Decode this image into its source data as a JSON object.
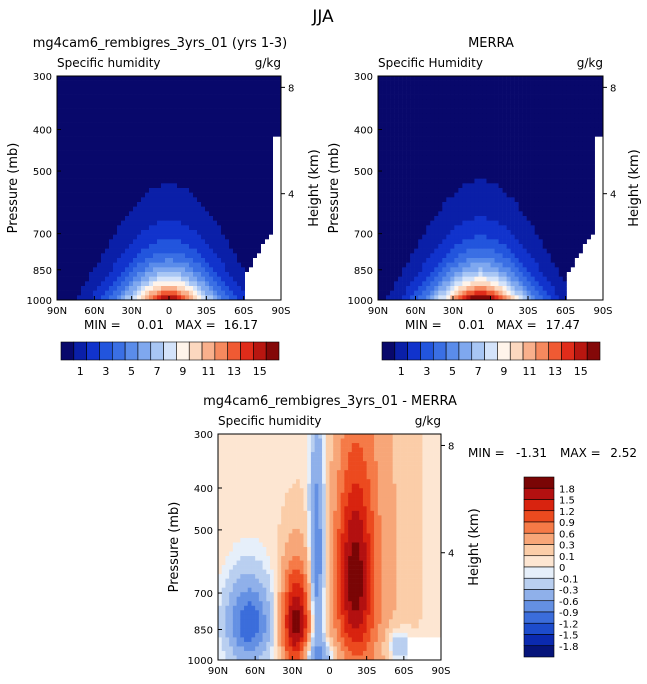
{
  "page_title": "JJA",
  "chart_data": [
    {
      "type": "heatmap",
      "id": "model",
      "title": "mg4cam6_rembigres_3yrs_01 (yrs 1-3)",
      "subtitle_left": "Specific humidity",
      "units": "g/kg",
      "ylabel": "Pressure (mb)",
      "ylabel_right": "Height (km)",
      "x_ticks": [
        "90N",
        "60N",
        "30N",
        "0",
        "30S",
        "60S",
        "90S"
      ],
      "y_ticks": [
        "300",
        "400",
        "500",
        "700",
        "850",
        "1000"
      ],
      "height_ticks": [
        "8",
        "4"
      ],
      "ylim": [
        300,
        1000
      ],
      "min_label": "MIN =",
      "min_value": "0.01",
      "max_label": "MAX =",
      "max_value": "16.17",
      "peak_value": 16.17,
      "peak_lat": 0
    },
    {
      "type": "heatmap",
      "id": "merra",
      "title": "MERRA",
      "subtitle_left": "Specific Humidity",
      "units": "g/kg",
      "ylabel": "Pressure (mb)",
      "ylabel_right": "Height (km)",
      "x_ticks": [
        "90N",
        "60N",
        "30N",
        "0",
        "30S",
        "60S",
        "90S"
      ],
      "y_ticks": [
        "300",
        "400",
        "500",
        "700",
        "850",
        "1000"
      ],
      "height_ticks": [
        "8",
        "4"
      ],
      "ylim": [
        300,
        1000
      ],
      "min_label": "MIN =",
      "min_value": "0.01",
      "max_label": "MAX =",
      "max_value": "17.47",
      "peak_value": 17.47,
      "peak_lat": 8
    },
    {
      "type": "heatmap",
      "id": "diff",
      "title": "mg4cam6_rembigres_3yrs_01 - MERRA",
      "subtitle_left": "Specific humidity",
      "units": "g/kg",
      "ylabel": "Pressure (mb)",
      "ylabel_right": "Height (km)",
      "x_ticks": [
        "90N",
        "60N",
        "30N",
        "0",
        "30S",
        "60S",
        "90S"
      ],
      "y_ticks": [
        "300",
        "400",
        "500",
        "700",
        "850",
        "1000"
      ],
      "height_ticks": [
        "8",
        "4"
      ],
      "ylim": [
        300,
        1000
      ],
      "min_label": "MIN =",
      "min_value": "-1.31",
      "max_label": "MAX =",
      "max_value": "2.52"
    }
  ],
  "colorbar_top": {
    "labels": [
      "1",
      "3",
      "5",
      "7",
      "9",
      "11",
      "13",
      "15"
    ],
    "colors": [
      "#08086b",
      "#0a1fa8",
      "#1133cc",
      "#2255dd",
      "#3a6fe4",
      "#5a8cea",
      "#7fa8ef",
      "#a8c6f4",
      "#d4e3fa",
      "#fff4ea",
      "#fcd8bf",
      "#f9b08c",
      "#f6895e",
      "#f05a33",
      "#e02c1a",
      "#b81610",
      "#840808"
    ]
  },
  "colorbar_diff": {
    "labels": [
      "1.8",
      "1.5",
      "1.2",
      "0.9",
      "0.6",
      "0.3",
      "0.1",
      "0",
      "-0.1",
      "-0.3",
      "-0.6",
      "-0.9",
      "-1.2",
      "-1.5",
      "-1.8"
    ],
    "colors": [
      "#7a0505",
      "#b31010",
      "#d8230f",
      "#ec4a1f",
      "#f57a47",
      "#f7a678",
      "#fbcda8",
      "#fde6d2",
      "#e6effa",
      "#b9cff0",
      "#8fb0ea",
      "#6490e3",
      "#3b6ddb",
      "#1d4ccc",
      "#0b2ab0",
      "#06147a"
    ]
  }
}
